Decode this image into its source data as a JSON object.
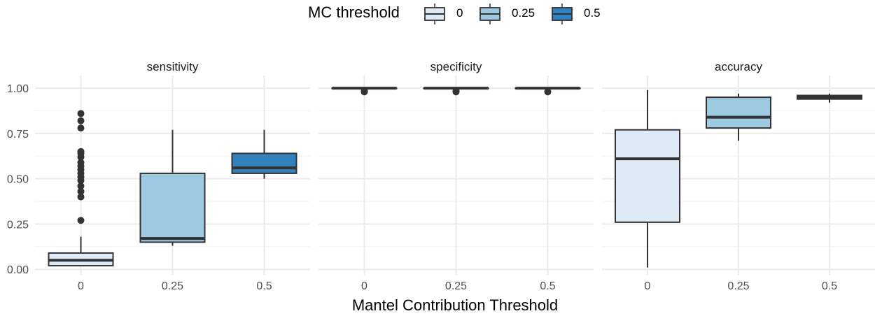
{
  "chart_data": {
    "type": "boxplot",
    "legend": {
      "title": "MC threshold",
      "position": "top",
      "entries": [
        {
          "label": "0",
          "color": "#deebf7"
        },
        {
          "label": "0.25",
          "color": "#9ecae1"
        },
        {
          "label": "0.5",
          "color": "#3182bd"
        }
      ]
    },
    "xlabel": "Mantel Contribution Threshold",
    "ylabel": "",
    "ylim": [
      -0.03,
      1.07
    ],
    "yticks": [
      0,
      0.25,
      0.5,
      0.75,
      1
    ],
    "ytick_labels": [
      "0.00",
      "0.25",
      "0.50",
      "0.75",
      "1.00"
    ],
    "categories": [
      "0",
      "0.25",
      "0.5"
    ],
    "grid": true,
    "panels": [
      {
        "title": "sensitivity",
        "boxes": [
          {
            "category": "0",
            "min": 0.02,
            "q1": 0.02,
            "median": 0.05,
            "q3": 0.09,
            "max": 0.18,
            "outliers": [
              0.27,
              0.4,
              0.43,
              0.46,
              0.49,
              0.51,
              0.53,
              0.55,
              0.57,
              0.59,
              0.62,
              0.64,
              0.65,
              0.78,
              0.82,
              0.86
            ]
          },
          {
            "category": "0.25",
            "min": 0.13,
            "q1": 0.15,
            "median": 0.17,
            "q3": 0.53,
            "max": 0.77,
            "outliers": []
          },
          {
            "category": "0.5",
            "min": 0.5,
            "q1": 0.53,
            "median": 0.56,
            "q3": 0.64,
            "max": 0.77,
            "outliers": []
          }
        ]
      },
      {
        "title": "specificity",
        "boxes": [
          {
            "category": "0",
            "min": 1.0,
            "q1": 1.0,
            "median": 1.0,
            "q3": 1.0,
            "max": 1.0,
            "outliers": [
              0.98,
              0.985
            ]
          },
          {
            "category": "0.25",
            "min": 1.0,
            "q1": 1.0,
            "median": 1.0,
            "q3": 1.0,
            "max": 1.0,
            "outliers": [
              0.98,
              0.985
            ]
          },
          {
            "category": "0.5",
            "min": 1.0,
            "q1": 1.0,
            "median": 1.0,
            "q3": 1.0,
            "max": 1.0,
            "outliers": [
              0.98
            ]
          }
        ]
      },
      {
        "title": "accuracy",
        "boxes": [
          {
            "category": "0",
            "min": 0.01,
            "q1": 0.26,
            "median": 0.61,
            "q3": 0.77,
            "max": 0.99,
            "outliers": []
          },
          {
            "category": "0.25",
            "min": 0.71,
            "q1": 0.78,
            "median": 0.84,
            "q3": 0.95,
            "max": 0.97,
            "outliers": []
          },
          {
            "category": "0.5",
            "min": 0.92,
            "q1": 0.94,
            "median": 0.95,
            "q3": 0.96,
            "max": 0.97,
            "outliers": []
          }
        ]
      }
    ]
  }
}
